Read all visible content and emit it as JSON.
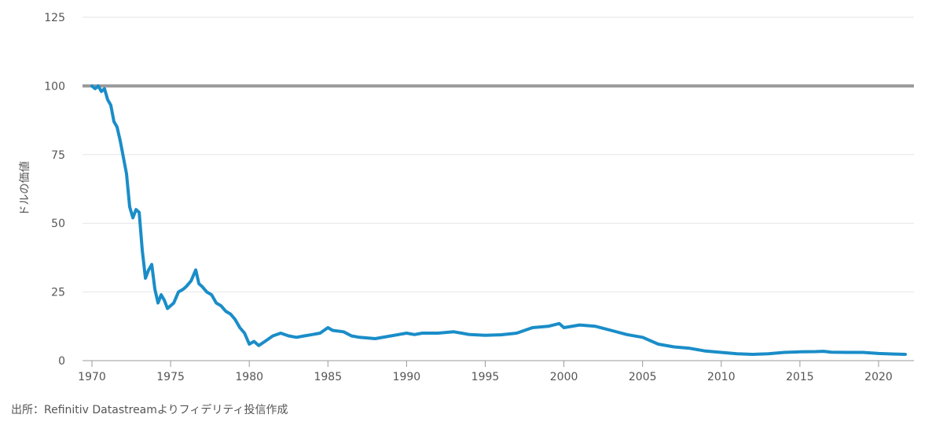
{
  "chart_data": {
    "type": "line",
    "title": "",
    "xlabel": "",
    "ylabel": "ドルの価値",
    "xlim": [
      1970,
      2022
    ],
    "ylim": [
      0,
      125
    ],
    "x_ticks": [
      "1970",
      "1975",
      "1980",
      "1985",
      "1990",
      "1995",
      "2000",
      "2005",
      "2010",
      "2015",
      "2020"
    ],
    "y_ticks": [
      "0",
      "25",
      "50",
      "75",
      "100",
      "125"
    ],
    "grid": true,
    "legend": "none",
    "reference_line": {
      "y": 100,
      "color": "#999999"
    },
    "series": [
      {
        "color": "#1a8dc8",
        "x": [
          1970.0,
          1970.2,
          1970.4,
          1970.6,
          1970.8,
          1971.0,
          1971.2,
          1971.4,
          1971.6,
          1971.8,
          1972.0,
          1972.2,
          1972.4,
          1972.6,
          1972.8,
          1973.0,
          1973.2,
          1973.4,
          1973.6,
          1973.8,
          1974.0,
          1974.2,
          1974.4,
          1974.6,
          1974.8,
          1975.0,
          1975.2,
          1975.5,
          1975.8,
          1976.0,
          1976.3,
          1976.6,
          1976.8,
          1977.0,
          1977.3,
          1977.6,
          1977.9,
          1978.2,
          1978.5,
          1978.8,
          1979.1,
          1979.4,
          1979.7,
          1980.0,
          1980.3,
          1980.6,
          1981.0,
          1981.5,
          1982.0,
          1982.5,
          1983.0,
          1983.5,
          1984.0,
          1984.5,
          1985.0,
          1985.3,
          1986.0,
          1986.5,
          1987.0,
          1988.0,
          1989.0,
          1990.0,
          1990.5,
          1991.0,
          1992.0,
          1993.0,
          1993.5,
          1994.0,
          1995.0,
          1996.0,
          1997.0,
          1998.0,
          1999.0,
          1999.7,
          2000.0,
          2001.0,
          2002.0,
          2003.0,
          2004.0,
          2005.0,
          2006.0,
          2007.0,
          2008.0,
          2009.0,
          2010.0,
          2011.0,
          2012.0,
          2013.0,
          2014.0,
          2015.0,
          2016.0,
          2016.5,
          2017.0,
          2018.0,
          2019.0,
          2020.0,
          2021.0,
          2021.7
        ],
        "y": [
          100,
          99,
          100,
          98,
          99,
          95,
          93,
          87,
          85,
          80,
          74,
          68,
          56,
          52,
          55,
          54,
          40,
          30,
          33,
          35,
          26,
          21,
          24,
          22,
          19,
          20,
          21,
          25,
          26,
          27,
          29,
          33,
          28,
          27,
          25,
          24,
          21,
          20,
          18,
          17,
          15,
          12,
          10,
          6,
          7,
          5.5,
          7,
          9,
          10,
          9,
          8.5,
          9,
          9.5,
          10,
          12,
          11,
          10.5,
          9,
          8.5,
          8,
          9,
          10,
          9.5,
          10,
          10,
          10.5,
          10,
          9.5,
          9.2,
          9.4,
          10,
          12,
          12.5,
          13.5,
          12,
          13,
          12.5,
          11,
          9.5,
          8.5,
          6,
          5,
          4.5,
          3.5,
          3,
          2.5,
          2.3,
          2.5,
          3,
          3.2,
          3.3,
          3.4,
          3.1,
          3,
          3,
          2.6,
          2.4,
          2.3
        ]
      }
    ]
  },
  "source_note": "出所：Refinitiv Datastreamよりフィデリティ投信作成"
}
